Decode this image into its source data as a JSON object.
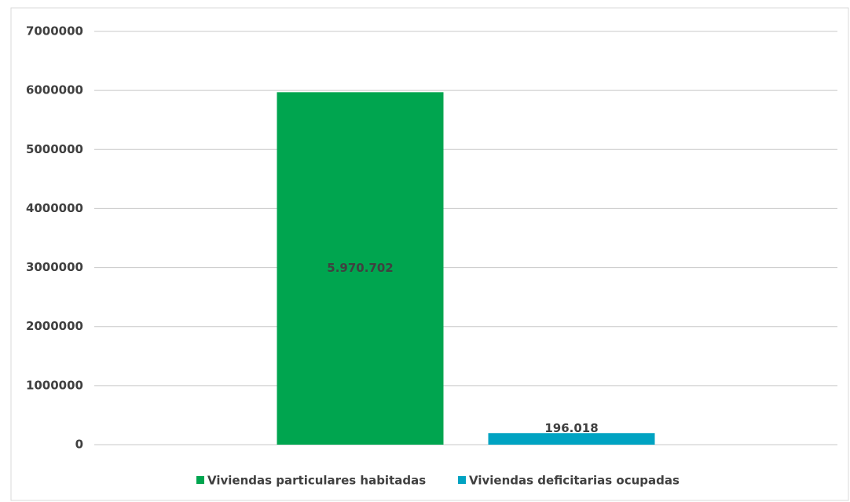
{
  "chart_data": {
    "type": "bar",
    "categories": [
      null
    ],
    "series": [
      {
        "name": "Viviendas particulares habitadas",
        "color": "#00a54f",
        "values": [
          5970702
        ],
        "value_labels": [
          "5.970.702"
        ]
      },
      {
        "name": "Viviendas deficitarias ocupadas",
        "color": "#00a3c2",
        "values": [
          196018
        ],
        "value_labels": [
          "196.018"
        ]
      }
    ],
    "ylim": [
      0,
      7000000
    ],
    "yticks": [
      0,
      1000000,
      2000000,
      3000000,
      4000000,
      5000000,
      6000000,
      7000000
    ],
    "grid": true,
    "legend": "bottom"
  }
}
